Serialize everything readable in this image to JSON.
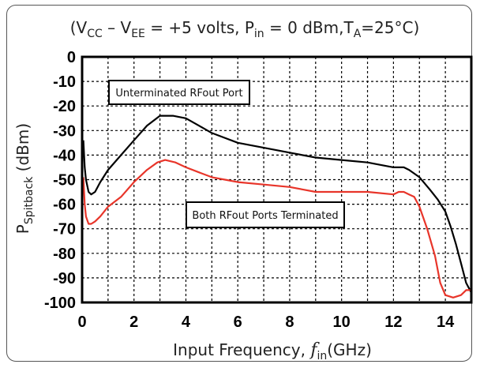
{
  "chart_data": {
    "type": "line",
    "title_parts": {
      "open": "(V",
      "cc_sub": "CC",
      "mid1": " – V",
      "ee_sub": "EE",
      "mid2": " = +5 volts, P",
      "in_sub": "in",
      "mid3": " = 0 dBm,T",
      "a_sub": "A",
      "end": "=25°C)"
    },
    "xlabel_parts": {
      "pre": "Input Frequency, ",
      "f": "f",
      "f_sub": "in",
      "post": "(GHz)"
    },
    "ylabel_parts": {
      "p": "P",
      "p_sub": "Spitback",
      "post": " (dBm)"
    },
    "xlim": [
      0,
      15
    ],
    "ylim": [
      -100,
      0
    ],
    "xticks": [
      "0",
      "2",
      "4",
      "6",
      "8",
      "10",
      "12",
      "14"
    ],
    "yticks": [
      "0",
      "-10",
      "-20",
      "-30",
      "-40",
      "-50",
      "-60",
      "-70",
      "-80",
      "-90",
      "-100"
    ],
    "grid": true,
    "annotations": [
      {
        "text": "Unterminated RFout Port",
        "series": 0
      },
      {
        "text": "Both RFout Ports Terminated",
        "series": 1
      }
    ],
    "series": [
      {
        "color": "#000000",
        "x": [
          0.05,
          0.1,
          0.15,
          0.25,
          0.35,
          0.5,
          0.7,
          1.0,
          1.5,
          2.0,
          2.5,
          3.0,
          3.5,
          4.0,
          4.5,
          5.0,
          5.5,
          6.0,
          7.0,
          8.0,
          9.0,
          10.0,
          11.0,
          12.0,
          12.4,
          12.6,
          13.0,
          13.4,
          13.7,
          14.0,
          14.2,
          14.4,
          14.6,
          14.8,
          15.0
        ],
        "y": [
          -34,
          -45,
          -50,
          -55,
          -56,
          -55,
          -51,
          -46,
          -40,
          -34,
          -28,
          -24,
          -24,
          -25,
          -28,
          -31,
          -33,
          -35,
          -37,
          -39,
          -41,
          -42,
          -43,
          -45,
          -45,
          -46,
          -49,
          -54,
          -58,
          -63,
          -69,
          -76,
          -84,
          -92,
          -96
        ]
      },
      {
        "color": "#e8352a",
        "x": [
          0.05,
          0.1,
          0.15,
          0.25,
          0.35,
          0.5,
          0.7,
          1.0,
          1.5,
          2.0,
          2.5,
          2.9,
          3.2,
          3.6,
          4.0,
          4.5,
          5.0,
          5.5,
          6.0,
          7.0,
          8.0,
          8.5,
          9.0,
          10.0,
          11.0,
          12.0,
          12.2,
          12.4,
          12.6,
          12.8,
          13.0,
          13.3,
          13.6,
          13.8,
          14.0,
          14.3,
          14.6,
          14.8,
          15.0
        ],
        "y": [
          -49,
          -60,
          -65,
          -68,
          -68,
          -67,
          -65,
          -61,
          -57,
          -51,
          -46,
          -43,
          -42,
          -43,
          -45,
          -47,
          -49,
          -50,
          -51,
          -52,
          -53,
          -54,
          -55,
          -55,
          -55,
          -56,
          -55,
          -55,
          -56,
          -57,
          -61,
          -70,
          -81,
          -92,
          -97,
          -98,
          -97,
          -95,
          -95
        ]
      }
    ]
  }
}
